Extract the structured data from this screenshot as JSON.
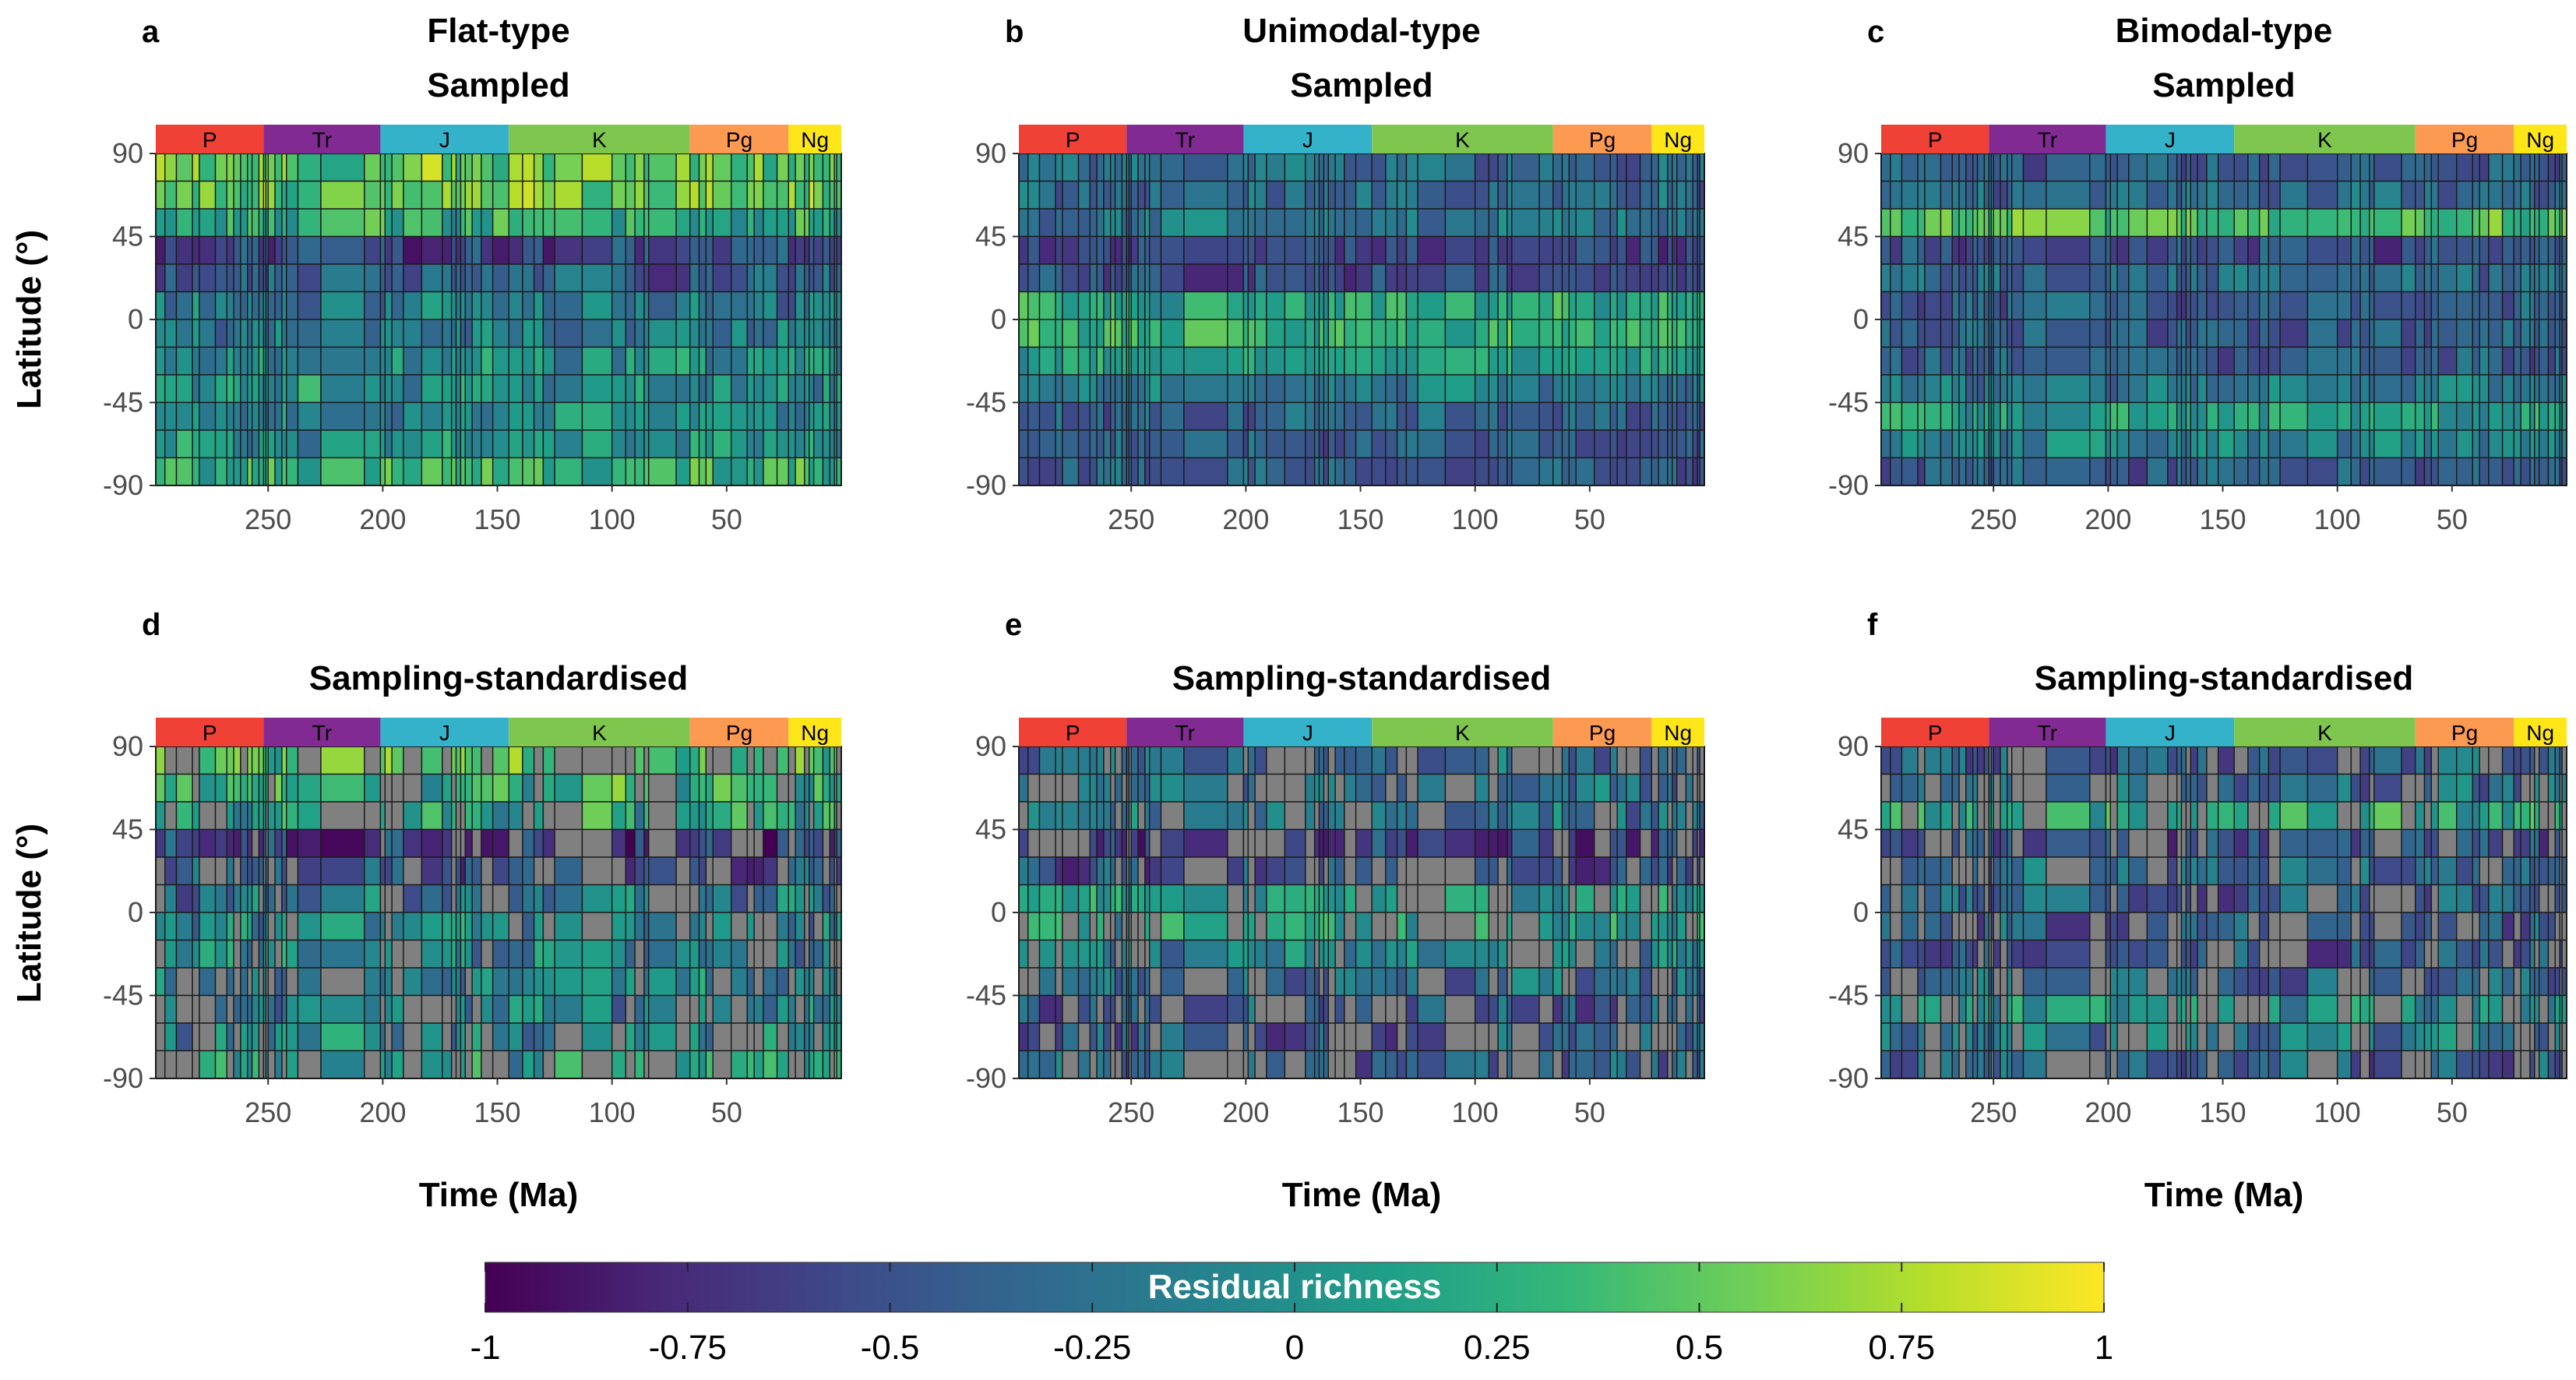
{
  "colors": {
    "no_data": "#808080",
    "viridis": [
      "#440154",
      "#482878",
      "#3e4a89",
      "#31688e",
      "#26828e",
      "#1f9e89",
      "#35b779",
      "#6ece58",
      "#b5de2b",
      "#fde725"
    ],
    "periods": {
      "P": "#ef4136",
      "Tr": "#812b92",
      "J": "#34b2c9",
      "K": "#7fc64e",
      "Pg": "#fd9a52",
      "Ng": "#ffe619"
    }
  },
  "x_axis": {
    "title": "Time (Ma)",
    "ticks": [
      250,
      200,
      150,
      100,
      50
    ],
    "xlim": [
      299,
      0
    ]
  },
  "y_axis": {
    "title": "Latitude (°)",
    "ticks": [
      90,
      45,
      0,
      -45,
      -90
    ],
    "ylim": [
      -90,
      90
    ]
  },
  "periods": [
    {
      "label": "P",
      "start": 299,
      "end": 252
    },
    {
      "label": "Tr",
      "start": 252,
      "end": 201
    },
    {
      "label": "J",
      "start": 201,
      "end": 145
    },
    {
      "label": "K",
      "start": 145,
      "end": 66
    },
    {
      "label": "Pg",
      "start": 66,
      "end": 23
    },
    {
      "label": "Ng",
      "start": 23,
      "end": 0
    }
  ],
  "time_bin_boundaries": [
    299,
    295,
    290,
    283,
    280,
    273,
    268,
    265,
    262,
    259,
    257,
    254,
    252,
    251,
    250,
    247,
    244,
    242,
    237,
    227,
    208,
    201,
    199,
    196,
    191,
    183,
    174,
    170,
    168,
    166,
    164,
    161,
    157,
    152,
    145,
    139,
    134,
    130,
    125,
    113,
    100,
    94,
    90,
    86,
    84,
    72,
    66,
    62,
    59,
    56,
    48,
    41,
    38,
    34,
    28,
    23,
    20,
    16,
    14,
    12,
    8,
    5,
    3,
    2,
    0
  ],
  "latitude_bin_boundaries": [
    90,
    75,
    60,
    45,
    30,
    15,
    0,
    -15,
    -30,
    -45,
    -60,
    -75,
    -90
  ],
  "colorbar": {
    "title": "Residual richness",
    "ticks": [
      "-1",
      "-0.75",
      "-0.5",
      "-0.25",
      "0",
      "0.25",
      "0.5",
      "0.75",
      "1"
    ],
    "range": [
      -1,
      1
    ]
  },
  "chart_data": [
    {
      "panel": "a",
      "type": "heatmap",
      "title": "Flat-type",
      "subtitle": "Sampled",
      "profile": [
        0.75,
        0.75,
        0.6,
        0.2,
        0.3,
        0.4,
        0.45,
        0.5,
        0.5,
        0.45,
        0.5,
        0.65
      ],
      "noise": 0.15,
      "missing": 0
    },
    {
      "panel": "b",
      "type": "heatmap",
      "title": "Unimodal-type",
      "subtitle": "Sampled",
      "profile": [
        0.35,
        0.35,
        0.4,
        0.2,
        0.25,
        0.6,
        0.65,
        0.55,
        0.4,
        0.3,
        0.3,
        0.3
      ],
      "noise": 0.12,
      "missing": 0
    },
    {
      "panel": "c",
      "type": "heatmap",
      "title": "Bimodal-type",
      "subtitle": "Sampled",
      "profile": [
        0.3,
        0.35,
        0.7,
        0.25,
        0.35,
        0.3,
        0.3,
        0.3,
        0.4,
        0.55,
        0.45,
        0.3
      ],
      "noise": 0.12,
      "missing": 0
    },
    {
      "panel": "d",
      "type": "heatmap",
      "title": "Sampling-standardised",
      "subtitle": "",
      "profile": [
        0.7,
        0.65,
        0.55,
        0.2,
        0.3,
        0.4,
        0.45,
        0.45,
        0.45,
        0.45,
        0.45,
        0.55
      ],
      "noise": 0.18,
      "missing": 0.28
    },
    {
      "panel": "e",
      "type": "heatmap",
      "title": "Sampling-standardised",
      "subtitle": "",
      "profile": [
        0.35,
        0.35,
        0.4,
        0.2,
        0.25,
        0.55,
        0.55,
        0.45,
        0.35,
        0.3,
        0.3,
        0.3
      ],
      "noise": 0.15,
      "missing": 0.28
    },
    {
      "panel": "f",
      "type": "heatmap",
      "title": "Sampling-standardised",
      "subtitle": "",
      "profile": [
        0.3,
        0.35,
        0.6,
        0.25,
        0.35,
        0.3,
        0.3,
        0.3,
        0.35,
        0.5,
        0.4,
        0.3
      ],
      "noise": 0.15,
      "missing": 0.3
    }
  ]
}
